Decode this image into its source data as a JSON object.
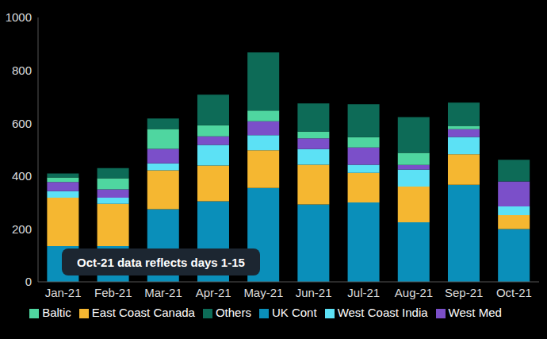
{
  "chart_data": {
    "type": "bar",
    "stacked": true,
    "grid": false,
    "legend": "bottom",
    "annotations": [
      "Oct-21 data reflects days 1-15"
    ],
    "categories": [
      "Jan-21",
      "Feb-21",
      "Mar-21",
      "Apr-21",
      "May-21",
      "Jun-21",
      "Jul-21",
      "Aug-21",
      "Sep-21",
      "Oct-21"
    ],
    "ylim": [
      0,
      1000
    ],
    "yticks": [
      0,
      200,
      400,
      600,
      800,
      1000
    ],
    "series": [
      {
        "name": "UK Cont",
        "color": "#0a8fba",
        "values": [
          135,
          135,
          275,
          305,
          355,
          293,
          300,
          225,
          367,
          200
        ]
      },
      {
        "name": "East Coast Canada",
        "color": "#f5b731",
        "values": [
          183,
          160,
          147,
          135,
          143,
          150,
          112,
          135,
          116,
          52
        ]
      },
      {
        "name": "West Coast India",
        "color": "#5ce1f5",
        "values": [
          25,
          23,
          26,
          78,
          57,
          59,
          31,
          65,
          65,
          33
        ]
      },
      {
        "name": "West Med",
        "color": "#7b4fc9",
        "values": [
          35,
          32,
          55,
          32,
          52,
          41,
          65,
          17,
          29,
          95
        ]
      },
      {
        "name": "Baltic",
        "color": "#4fd6a0",
        "values": [
          17,
          42,
          75,
          42,
          41,
          25,
          39,
          46,
          13,
          0
        ]
      },
      {
        "name": "Others",
        "color": "#0d6b57",
        "values": [
          15,
          38,
          40,
          116,
          220,
          107,
          125,
          135,
          88,
          82
        ]
      }
    ]
  }
}
